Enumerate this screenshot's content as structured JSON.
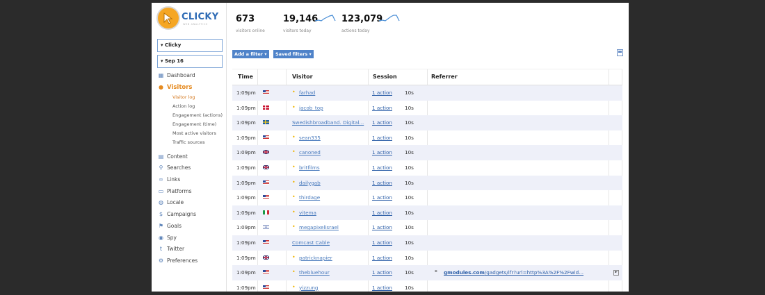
{
  "app": {
    "logo_text": "CLICKY",
    "logo_tagline": "WEB ANALYTICS"
  },
  "sidebar": {
    "site_select": "▾ Clicky",
    "date_select": "▾ Sep 16",
    "items": [
      {
        "label": "Dashboard",
        "icon": "dashboard-icon"
      },
      {
        "label": "Visitors",
        "icon": "visitors-icon",
        "active": true
      },
      {
        "label": "Content",
        "icon": "content-icon"
      },
      {
        "label": "Searches",
        "icon": "search-icon"
      },
      {
        "label": "Links",
        "icon": "link-icon"
      },
      {
        "label": "Platforms",
        "icon": "platforms-icon"
      },
      {
        "label": "Locale",
        "icon": "globe-icon"
      },
      {
        "label": "Campaigns",
        "icon": "campaign-icon"
      },
      {
        "label": "Goals",
        "icon": "goals-icon"
      },
      {
        "label": "Spy",
        "icon": "eye-icon"
      },
      {
        "label": "Twitter",
        "icon": "twitter-icon"
      },
      {
        "label": "Preferences",
        "icon": "gear-icon"
      }
    ],
    "subitems": [
      "Visitor log",
      "Action log",
      "Engagement (actions)",
      "Engagement (time)",
      "Most active visitors",
      "Traffic sources"
    ]
  },
  "stats": [
    {
      "value": "673",
      "label": "visitors online"
    },
    {
      "value": "19,146",
      "label": "visitors today"
    },
    {
      "value": "123,079",
      "label": "actions today"
    }
  ],
  "filters": {
    "add_label": "Add a filter ▾",
    "saved_label": "Saved filters ▾"
  },
  "table": {
    "headers": [
      "Time",
      "Visitor",
      "Session",
      "Referrer"
    ],
    "rows": [
      {
        "time": "1:09pm",
        "flag": "us",
        "visitor": "farhad",
        "dot": true,
        "session": "1 action",
        "duration": "10s",
        "referrer": ""
      },
      {
        "time": "1:09pm",
        "flag": "dk",
        "visitor": "jacob_top",
        "dot": true,
        "session": "1 action",
        "duration": "10s",
        "referrer": ""
      },
      {
        "time": "1:09pm",
        "flag": "se",
        "visitor": "Swedishbroadband. Digital...",
        "dot": false,
        "session": "1 action",
        "duration": "10s",
        "referrer": ""
      },
      {
        "time": "1:09pm",
        "flag": "us",
        "visitor": "sean335",
        "dot": true,
        "session": "1 action",
        "duration": "10s",
        "referrer": ""
      },
      {
        "time": "1:09pm",
        "flag": "gb",
        "visitor": "canoned",
        "dot": true,
        "session": "1 action",
        "duration": "10s",
        "referrer": ""
      },
      {
        "time": "1:09pm",
        "flag": "gb",
        "visitor": "britfilms",
        "dot": true,
        "session": "1 action",
        "duration": "10s",
        "referrer": ""
      },
      {
        "time": "1:09pm",
        "flag": "us",
        "visitor": "dailygab",
        "dot": true,
        "session": "1 action",
        "duration": "10s",
        "referrer": ""
      },
      {
        "time": "1:09pm",
        "flag": "us",
        "visitor": "thirdage",
        "dot": true,
        "session": "1 action",
        "duration": "10s",
        "referrer": ""
      },
      {
        "time": "1:09pm",
        "flag": "it",
        "visitor": "vitema",
        "dot": true,
        "session": "1 action",
        "duration": "10s",
        "referrer": ""
      },
      {
        "time": "1:09pm",
        "flag": "il",
        "visitor": "megapixelisrael",
        "dot": true,
        "session": "1 action",
        "duration": "10s",
        "referrer": ""
      },
      {
        "time": "1:09pm",
        "flag": "us",
        "visitor": "Comcast Cable",
        "dot": false,
        "session": "1 action",
        "duration": "10s",
        "referrer": ""
      },
      {
        "time": "1:09pm",
        "flag": "gb",
        "visitor": "patricknapier",
        "dot": true,
        "session": "1 action",
        "duration": "10s",
        "referrer": ""
      },
      {
        "time": "1:09pm",
        "flag": "us",
        "visitor": "thebluehour",
        "dot": true,
        "session": "1 action",
        "duration": "10s",
        "referrer_domain": "gmodules.com",
        "referrer": "/gadgets/ifr?url=http%3A%2F%2Fwid..."
      },
      {
        "time": "1:09pm",
        "flag": "us",
        "visitor": "yizzung",
        "dot": true,
        "session": "1 action",
        "duration": "10s",
        "referrer": ""
      }
    ]
  },
  "colors": {
    "accent": "#4f83c9",
    "orange": "#e58a1f",
    "row_alt": "#eef0f9",
    "background": "#2b2b2b"
  }
}
